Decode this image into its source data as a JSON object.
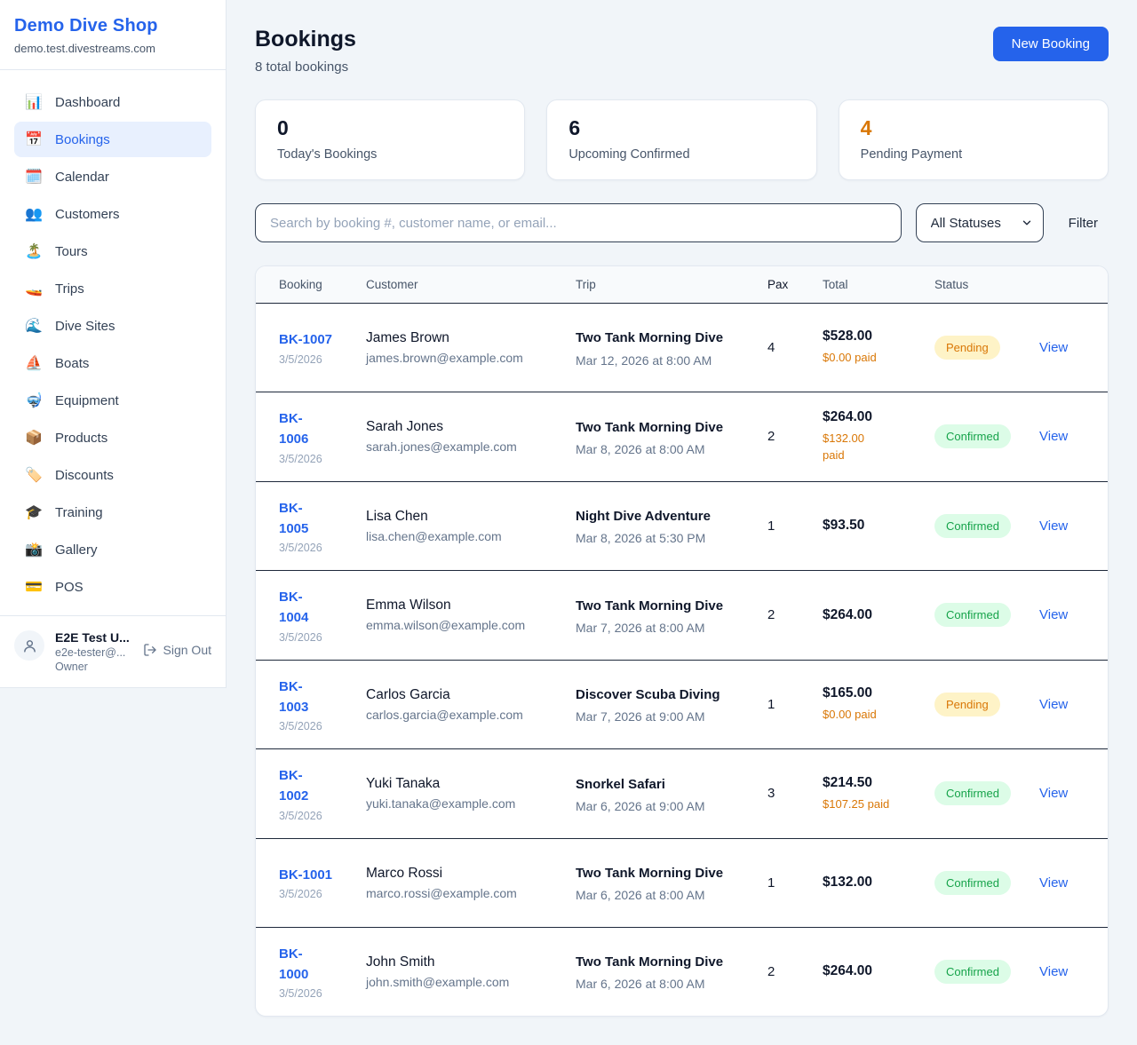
{
  "colors": {
    "accent_blue": "#2563eb",
    "page_bg": "#f1f5f9",
    "pending_text": "#d97706",
    "pending_bg": "#fef3c7",
    "confirmed_text": "#16a34a",
    "confirmed_bg": "#dcfce7"
  },
  "sidebar": {
    "shop_name": "Demo Dive Shop",
    "domain": "demo.test.divestreams.com",
    "items": [
      {
        "icon": "📊",
        "label": "Dashboard",
        "active": false
      },
      {
        "icon": "📅",
        "label": "Bookings",
        "active": true
      },
      {
        "icon": "🗓️",
        "label": "Calendar",
        "active": false
      },
      {
        "icon": "👥",
        "label": "Customers",
        "active": false
      },
      {
        "icon": "🏝️",
        "label": "Tours",
        "active": false
      },
      {
        "icon": "🚤",
        "label": "Trips",
        "active": false
      },
      {
        "icon": "🌊",
        "label": "Dive Sites",
        "active": false
      },
      {
        "icon": "⛵",
        "label": "Boats",
        "active": false
      },
      {
        "icon": "🤿",
        "label": "Equipment",
        "active": false
      },
      {
        "icon": "📦",
        "label": "Products",
        "active": false
      },
      {
        "icon": "🏷️",
        "label": "Discounts",
        "active": false
      },
      {
        "icon": "🎓",
        "label": "Training",
        "active": false
      },
      {
        "icon": "📸",
        "label": "Gallery",
        "active": false
      },
      {
        "icon": "💳",
        "label": "POS",
        "active": false
      }
    ],
    "user": {
      "name": "E2E Test U...",
      "email": "e2e-tester@...",
      "role": "Owner",
      "sign_out_label": "Sign Out"
    }
  },
  "header": {
    "title": "Bookings",
    "subtitle": "8 total bookings",
    "new_booking_label": "New Booking"
  },
  "stats": [
    {
      "value": "0",
      "label": "Today's Bookings",
      "highlight": false
    },
    {
      "value": "6",
      "label": "Upcoming Confirmed",
      "highlight": false
    },
    {
      "value": "4",
      "label": "Pending Payment",
      "highlight": true
    }
  ],
  "filters": {
    "search_placeholder": "Search by booking #, customer name, or email...",
    "status_selected": "All Statuses",
    "filter_label": "Filter"
  },
  "table": {
    "headers": [
      "Booking",
      "Customer",
      "Trip",
      "Pax",
      "Total",
      "Status",
      ""
    ],
    "view_label": "View",
    "rows": [
      {
        "booking_id": "BK-1007",
        "id_wrap": false,
        "booking_date": "3/5/2026",
        "customer_name": "James Brown",
        "customer_email": "james.brown@example.com",
        "trip_name": "Two Tank Morning Dive",
        "trip_datetime": "Mar 12, 2026 at 8:00 AM",
        "pax": "4",
        "total": "$528.00",
        "paid": "$0.00 paid",
        "paid_wrap": false,
        "status": "Pending"
      },
      {
        "booking_id": "BK-1006",
        "id_wrap": true,
        "booking_date": "3/5/2026",
        "customer_name": "Sarah Jones",
        "customer_email": "sarah.jones@example.com",
        "trip_name": "Two Tank Morning Dive",
        "trip_datetime": "Mar 8, 2026 at 8:00 AM",
        "pax": "2",
        "total": "$264.00",
        "paid": "$132.00 paid",
        "paid_wrap": true,
        "status": "Confirmed"
      },
      {
        "booking_id": "BK-1005",
        "id_wrap": true,
        "booking_date": "3/5/2026",
        "customer_name": "Lisa Chen",
        "customer_email": "lisa.chen@example.com",
        "trip_name": "Night Dive Adventure",
        "trip_datetime": "Mar 8, 2026 at 5:30 PM",
        "pax": "1",
        "total": "$93.50",
        "paid": "",
        "paid_wrap": false,
        "status": "Confirmed"
      },
      {
        "booking_id": "BK-1004",
        "id_wrap": true,
        "booking_date": "3/5/2026",
        "customer_name": "Emma Wilson",
        "customer_email": "emma.wilson@example.com",
        "trip_name": "Two Tank Morning Dive",
        "trip_datetime": "Mar 7, 2026 at 8:00 AM",
        "pax": "2",
        "total": "$264.00",
        "paid": "",
        "paid_wrap": false,
        "status": "Confirmed"
      },
      {
        "booking_id": "BK-1003",
        "id_wrap": true,
        "booking_date": "3/5/2026",
        "customer_name": "Carlos Garcia",
        "customer_email": "carlos.garcia@example.com",
        "trip_name": "Discover Scuba Diving",
        "trip_datetime": "Mar 7, 2026 at 9:00 AM",
        "pax": "1",
        "total": "$165.00",
        "paid": "$0.00 paid",
        "paid_wrap": false,
        "status": "Pending"
      },
      {
        "booking_id": "BK-1002",
        "id_wrap": true,
        "booking_date": "3/5/2026",
        "customer_name": "Yuki Tanaka",
        "customer_email": "yuki.tanaka@example.com",
        "trip_name": "Snorkel Safari",
        "trip_datetime": "Mar 6, 2026 at 9:00 AM",
        "pax": "3",
        "total": "$214.50",
        "paid": "$107.25 paid",
        "paid_wrap": false,
        "status": "Confirmed"
      },
      {
        "booking_id": "BK-1001",
        "id_wrap": false,
        "booking_date": "3/5/2026",
        "customer_name": "Marco Rossi",
        "customer_email": "marco.rossi@example.com",
        "trip_name": "Two Tank Morning Dive",
        "trip_datetime": "Mar 6, 2026 at 8:00 AM",
        "pax": "1",
        "total": "$132.00",
        "paid": "",
        "paid_wrap": false,
        "status": "Confirmed"
      },
      {
        "booking_id": "BK-1000",
        "id_wrap": true,
        "booking_date": "3/5/2026",
        "customer_name": "John Smith",
        "customer_email": "john.smith@example.com",
        "trip_name": "Two Tank Morning Dive",
        "trip_datetime": "Mar 6, 2026 at 8:00 AM",
        "pax": "2",
        "total": "$264.00",
        "paid": "",
        "paid_wrap": false,
        "status": "Confirmed"
      }
    ]
  }
}
